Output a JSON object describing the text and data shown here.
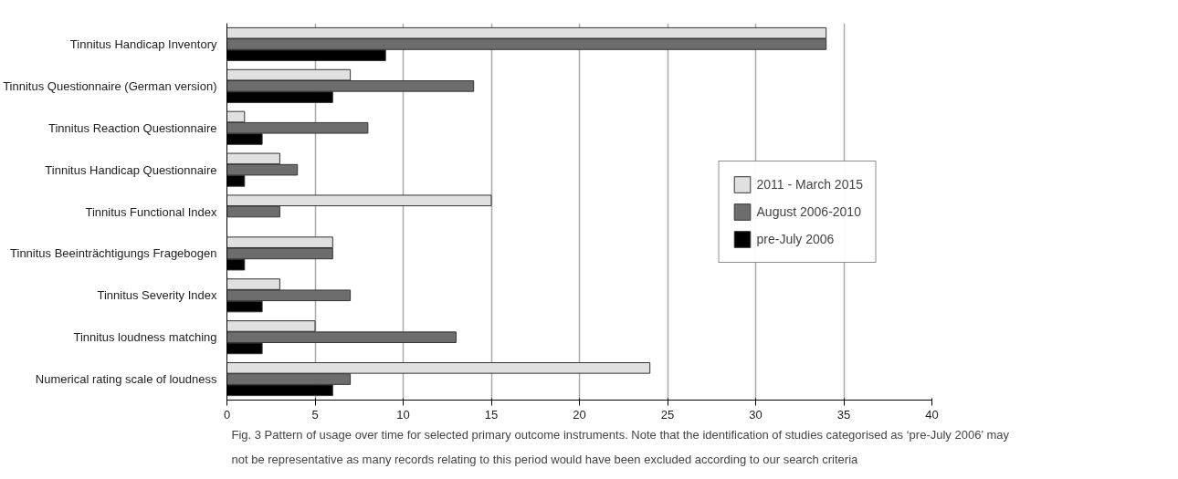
{
  "chart_data": {
    "type": "bar",
    "orientation": "horizontal",
    "categories": [
      "Tinnitus Handicap Inventory",
      "Tinnitus Questionnaire (German version)",
      "Tinnitus Reaction Questionnaire",
      "Tinnitus Handicap Questionnaire",
      "Tinnitus Functional Index",
      "Tinnitus Beeinträchtigungs Fragebogen",
      "Tinnitus Severity Index",
      "Tinnitus loudness matching",
      "Numerical rating scale of loudness"
    ],
    "series": [
      {
        "name": "2011 - March 2015",
        "color": "#e0e0e0",
        "values": [
          34,
          7,
          1,
          3,
          15,
          6,
          3,
          5,
          24
        ]
      },
      {
        "name": "August 2006-2010",
        "color": "#6d6d6d",
        "values": [
          34,
          14,
          8,
          4,
          3,
          6,
          7,
          13,
          7
        ]
      },
      {
        "name": "pre-July 2006",
        "color": "#000000",
        "values": [
          9,
          6,
          2,
          1,
          null,
          1,
          2,
          2,
          6
        ]
      }
    ],
    "xlim": [
      0,
      40
    ],
    "xticks": [
      0,
      5,
      10,
      15,
      20,
      25,
      30,
      35,
      40
    ],
    "grid": "x",
    "legend": "right",
    "annotations": [
      "Fig. 3 Pattern of usage over time for selected primary outcome instruments. Note that the identification of studies categorised as ‘pre-July 2006’ may not be representative as many records relating to this period would have been excluded according to our search criteria"
    ]
  }
}
